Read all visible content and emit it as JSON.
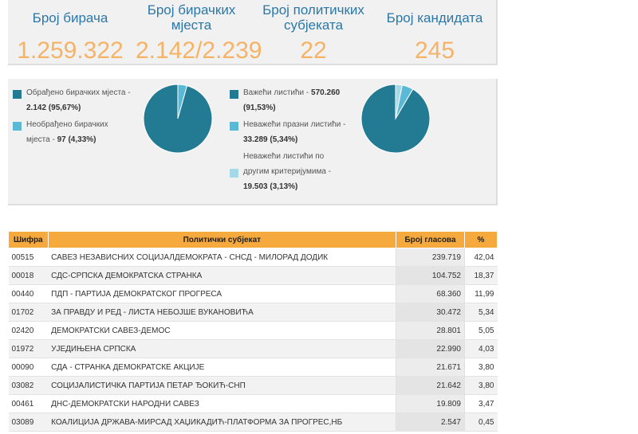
{
  "stats": [
    {
      "label": "Број бирача",
      "value": "1.259.322"
    },
    {
      "label": "Број бирачких мјеста",
      "value": "2.142/2.239"
    },
    {
      "label": "Број политичких субјеката",
      "value": "22"
    },
    {
      "label": "Број кандидата",
      "value": "245"
    }
  ],
  "colors": {
    "primary": "#227b93",
    "secondary": "#5bb9d6",
    "tertiary": "#a6d9e8",
    "accent": "#f6a93c",
    "stat_label": "#2b78a8",
    "stat_value": "#f6b366"
  },
  "stations": {
    "processed_label": "Обрађено бирачких мјеста -",
    "processed_value": "2.142 (95,67%)",
    "unprocessed_label_1": "Необрађено бирачких",
    "unprocessed_label_2": "мјеста -",
    "unprocessed_value": "97 (4,33%)",
    "shares": [
      95.67,
      4.33
    ]
  },
  "ballots": {
    "valid_label": "Важећи листићи -",
    "valid_value": "570.260",
    "valid_pct": "(91,53%)",
    "invalid_empty_label": "Неважећи празни листићи -",
    "invalid_empty_value": "33.289 (5,34%)",
    "invalid_other_label_1": "Неважећи листићи по",
    "invalid_other_label_2": "другим критеријумима -",
    "invalid_other_value": "19.503 (3,13%)",
    "shares": [
      91.53,
      5.34,
      3.13
    ]
  },
  "table": {
    "headers": {
      "code": "Шифра",
      "party": "Политички субјекат",
      "votes": "Број гласова",
      "pct": "%"
    },
    "rows": [
      {
        "code": "00515",
        "party": "САВЕЗ НЕЗАВИСНИХ СОЦИЈАЛДЕМОКРАТА - СНСД - МИЛОРАД ДОДИК",
        "votes": "239.719",
        "pct": "42,04"
      },
      {
        "code": "00018",
        "party": "СДС-СРПСКА ДЕМОКРАТСКА СТРАНКА",
        "votes": "104.752",
        "pct": "18,37"
      },
      {
        "code": "00440",
        "party": "ПДП - ПАРТИЈА ДЕМОКРАТСКОГ ПРОГРЕСА",
        "votes": "68.360",
        "pct": "11,99"
      },
      {
        "code": "01702",
        "party": "ЗА ПРАВДУ И РЕД - ЛИСТА НЕБОЈШЕ ВУКАНОВИЋА",
        "votes": "30.472",
        "pct": "5,34"
      },
      {
        "code": "02420",
        "party": "ДЕМОКРАТСКИ САВЕЗ-ДЕМОС",
        "votes": "28.801",
        "pct": "5,05"
      },
      {
        "code": "01972",
        "party": "УЈЕДИЊЕНА СРПСКА",
        "votes": "22.990",
        "pct": "4,03"
      },
      {
        "code": "00090",
        "party": "СДА - СТРАНКА ДЕМОКРАТСКЕ АКЦИЈЕ",
        "votes": "21.671",
        "pct": "3,80"
      },
      {
        "code": "03082",
        "party": "СОЦИЈАЛИСТИЧКА ПАРТИЈА ПЕТАР ЂОКИЋ-СНП",
        "votes": "21.642",
        "pct": "3,80"
      },
      {
        "code": "00461",
        "party": "ДНС-ДЕМОКРАТСКИ НАРОДНИ САВЕЗ",
        "votes": "19.809",
        "pct": "3,47"
      },
      {
        "code": "03089",
        "party": "КОАЛИЦИЈА ДРЖАВА-МИРСАД ХАЏИКАДИЋ-ПЛАТФОРМА ЗА ПРОГРЕС,НБ",
        "votes": "2.547",
        "pct": "0,45"
      }
    ]
  }
}
